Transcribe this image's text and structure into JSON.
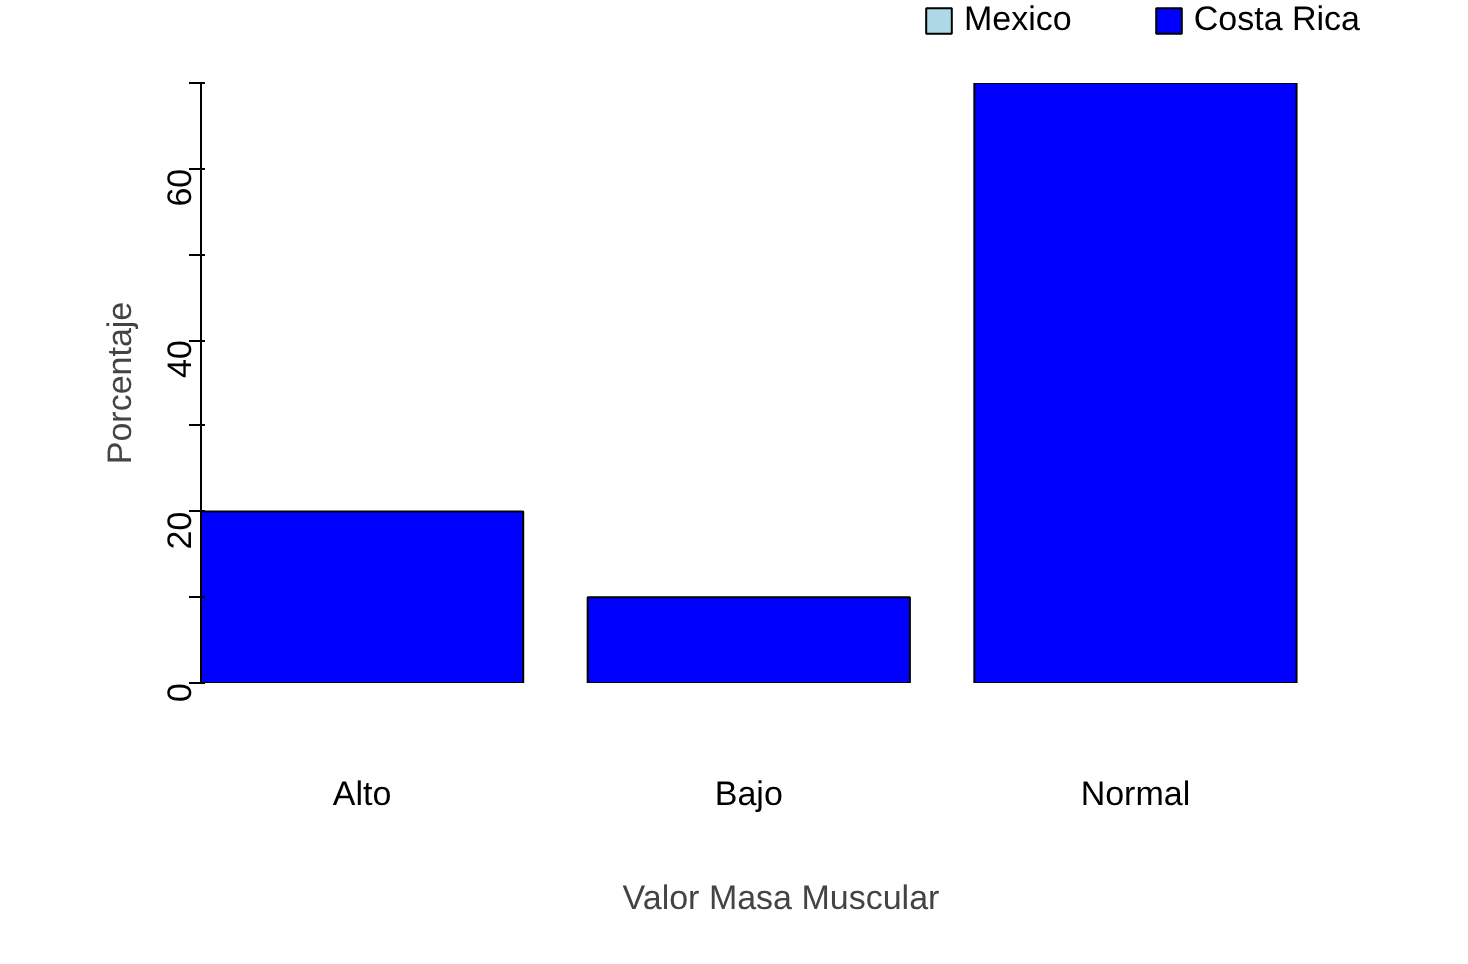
{
  "chart_data": {
    "type": "bar",
    "stacked": true,
    "xlabel": "Valor Masa Muscular",
    "ylabel": "Porcentaje",
    "categories": [
      "Alto",
      "Bajo",
      "Normal"
    ],
    "series": [
      {
        "name": "Mexico",
        "color": "#add8e6",
        "values": [
          null,
          null,
          null
        ]
      },
      {
        "name": "Costa Rica",
        "color": "#0000ff",
        "values": [
          20,
          10,
          70
        ]
      }
    ],
    "ylim": [
      0,
      70
    ],
    "yticks": [
      0,
      {
        "value": 10,
        "label": null
      },
      20,
      {
        "value": 30,
        "label": null
      },
      40,
      {
        "value": 50,
        "label": null
      },
      60,
      {
        "value": 70,
        "label": null
      }
    ],
    "grid": false,
    "legend": "top right"
  }
}
